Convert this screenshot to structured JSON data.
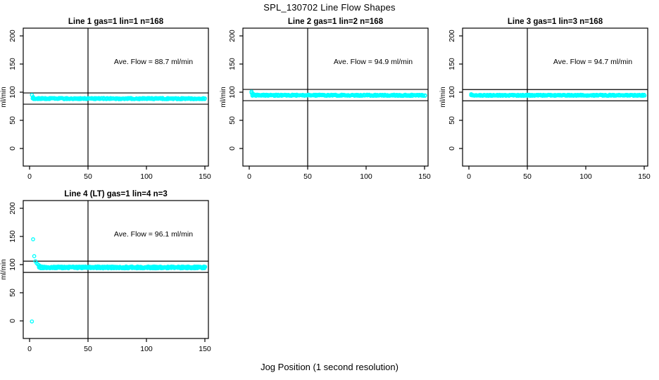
{
  "chart_data": {
    "type": "scatter",
    "title": "SPL_130702  Line Flow Shapes",
    "xlabel": "Jog Position (1 second resolution)",
    "ylabel": "ml/min",
    "x_ticks": [
      0,
      50,
      100,
      150
    ],
    "y_ticks": [
      0,
      50,
      100,
      150,
      200
    ],
    "xlim": [
      -5.5,
      153
    ],
    "ylim": [
      -31,
      214
    ],
    "grid": false,
    "legend": "none",
    "marker": {
      "shape": "open-circle",
      "color": "#00FFFF"
    },
    "reference_vline_x": 50,
    "panels": [
      {
        "id": "line-1",
        "title": "Line 1 gas=1 lin=1 n=168",
        "annotation": "Ave. Flow =  88.7  ml/min",
        "ave_flow_ml_min": 88.7,
        "n": 168,
        "hlines": [
          98.7,
          78.7
        ],
        "series": {
          "outliers": [],
          "transient": [
            [
              2,
              95.0
            ],
            [
              3,
              91.5
            ]
          ],
          "band": {
            "x_start": 3,
            "x_end": 150,
            "mean": 88.6,
            "jitter": 1.1,
            "per_x": 2
          }
        }
      },
      {
        "id": "line-2",
        "title": "Line 2 gas=1 lin=2 n=168",
        "annotation": "Ave. Flow =  94.9  ml/min",
        "ave_flow_ml_min": 94.9,
        "n": 168,
        "hlines": [
          104.9,
          84.9
        ],
        "series": {
          "outliers": [],
          "transient": [
            [
              2,
              101.0
            ],
            [
              2,
              99.0
            ],
            [
              3,
              97.5
            ],
            [
              4,
              96.3
            ]
          ],
          "band": {
            "x_start": 3,
            "x_end": 150,
            "mean": 94.5,
            "jitter": 1.1,
            "per_x": 2
          }
        }
      },
      {
        "id": "line-3",
        "title": "Line 3 gas=1 lin=3 n=168",
        "annotation": "Ave. Flow =  94.7  ml/min",
        "ave_flow_ml_min": 94.7,
        "n": 168,
        "hlines": [
          104.7,
          84.7
        ],
        "series": {
          "outliers": [],
          "transient": [
            [
              2,
              96.5
            ]
          ],
          "band": {
            "x_start": 2,
            "x_end": 150,
            "mean": 94.5,
            "jitter": 1.0,
            "per_x": 2
          }
        }
      },
      {
        "id": "line-4-lt",
        "title": "Line 4 (LT) gas=1 lin=4 n=3",
        "annotation": "Ave. Flow =  96.1  ml/min",
        "ave_flow_ml_min": 96.1,
        "n": 3,
        "hlines": [
          106.1,
          86.1
        ],
        "series": {
          "outliers": [
            [
              2,
              -1
            ],
            [
              3,
              145
            ],
            [
              4,
              115
            ]
          ],
          "transient": [
            [
              5,
              106
            ],
            [
              6,
              102.5
            ],
            [
              7,
              100.5
            ],
            [
              8,
              99
            ],
            [
              9,
              97.5
            ]
          ],
          "band": {
            "x_start": 8,
            "x_end": 150,
            "mean": 95.0,
            "jitter": 1.7,
            "per_x": 3
          }
        }
      }
    ]
  }
}
